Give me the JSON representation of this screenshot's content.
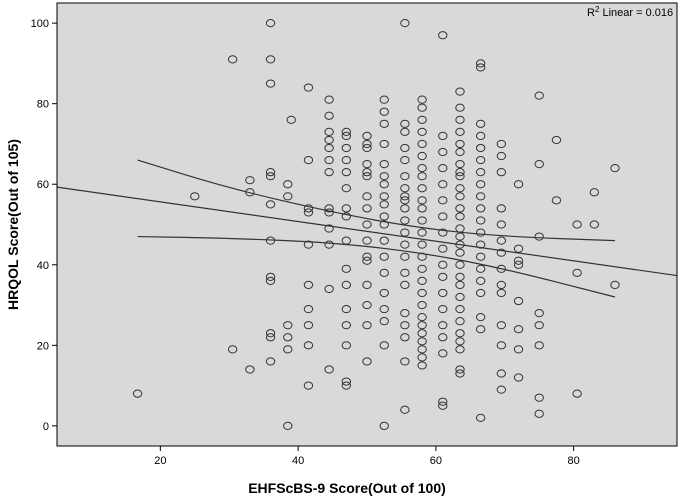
{
  "chart_data": {
    "type": "scatter",
    "xlabel": "EHFScBS-9 Score(Out of 100)",
    "ylabel": "HRQOL Score(Out of 105)",
    "xlim": [
      5,
      95
    ],
    "ylim": [
      -5,
      105
    ],
    "xticks": [
      20,
      40,
      60,
      80
    ],
    "yticks": [
      0,
      20,
      40,
      60,
      80,
      100
    ],
    "grid": false,
    "background": "#d9d9d9",
    "annotation": {
      "prefix": "R",
      "sup": "2",
      "suffix": " Linear = 0.016"
    },
    "fit_line": {
      "slope": -0.244,
      "intercept": 60.5
    },
    "ci_upper": [
      [
        16.7,
        66
      ],
      [
        30,
        59
      ],
      [
        45,
        53
      ],
      [
        58,
        49
      ],
      [
        70,
        47
      ],
      [
        86,
        46
      ]
    ],
    "ci_lower": [
      [
        16.7,
        47
      ],
      [
        30,
        46.6
      ],
      [
        45,
        45.5
      ],
      [
        58,
        43
      ],
      [
        70,
        39
      ],
      [
        86,
        32
      ]
    ],
    "points": [
      [
        16.7,
        8
      ],
      [
        25,
        57
      ],
      [
        30.5,
        91
      ],
      [
        30.5,
        19
      ],
      [
        33,
        61
      ],
      [
        33,
        58
      ],
      [
        33,
        14
      ],
      [
        36,
        100
      ],
      [
        36,
        91
      ],
      [
        36,
        85
      ],
      [
        36,
        63
      ],
      [
        36,
        62
      ],
      [
        36,
        55
      ],
      [
        36,
        46
      ],
      [
        36,
        37
      ],
      [
        36,
        36
      ],
      [
        36,
        23
      ],
      [
        36,
        22
      ],
      [
        36,
        16
      ],
      [
        38.5,
        60
      ],
      [
        38.5,
        57
      ],
      [
        38.5,
        25
      ],
      [
        38.5,
        22
      ],
      [
        38.5,
        19
      ],
      [
        38.5,
        0
      ],
      [
        39,
        76
      ],
      [
        41.5,
        84
      ],
      [
        41.5,
        66
      ],
      [
        41.5,
        54
      ],
      [
        41.5,
        53
      ],
      [
        41.5,
        45
      ],
      [
        41.5,
        29
      ],
      [
        41.5,
        25
      ],
      [
        41.5,
        20
      ],
      [
        41.5,
        10
      ],
      [
        41.5,
        35
      ],
      [
        44.5,
        81
      ],
      [
        44.5,
        77
      ],
      [
        44.5,
        73
      ],
      [
        44.5,
        71
      ],
      [
        44.5,
        69
      ],
      [
        44.5,
        66
      ],
      [
        44.5,
        63
      ],
      [
        44.5,
        54
      ],
      [
        44.5,
        53
      ],
      [
        44.5,
        49
      ],
      [
        44.5,
        45
      ],
      [
        44.5,
        34
      ],
      [
        44.5,
        14
      ],
      [
        47,
        73
      ],
      [
        47,
        72
      ],
      [
        47,
        69
      ],
      [
        47,
        66
      ],
      [
        47,
        63
      ],
      [
        47,
        59
      ],
      [
        47,
        54
      ],
      [
        47,
        52
      ],
      [
        47,
        46
      ],
      [
        47,
        39
      ],
      [
        47,
        35
      ],
      [
        47,
        29
      ],
      [
        47,
        25
      ],
      [
        47,
        20
      ],
      [
        47,
        11
      ],
      [
        47,
        10
      ],
      [
        50,
        72
      ],
      [
        50,
        70
      ],
      [
        50,
        69
      ],
      [
        50,
        65
      ],
      [
        50,
        63
      ],
      [
        50,
        62
      ],
      [
        50,
        57
      ],
      [
        50,
        54
      ],
      [
        50,
        50
      ],
      [
        50,
        46
      ],
      [
        50,
        42
      ],
      [
        50,
        41
      ],
      [
        50,
        35
      ],
      [
        50,
        30
      ],
      [
        50,
        25
      ],
      [
        50,
        16
      ],
      [
        52.5,
        81
      ],
      [
        52.5,
        78
      ],
      [
        52.5,
        75
      ],
      [
        52.5,
        70
      ],
      [
        52.5,
        65
      ],
      [
        52.5,
        62
      ],
      [
        52.5,
        60
      ],
      [
        52.5,
        57
      ],
      [
        52.5,
        55
      ],
      [
        52.5,
        52
      ],
      [
        52.5,
        50
      ],
      [
        52.5,
        46
      ],
      [
        52.5,
        42
      ],
      [
        52.5,
        38
      ],
      [
        52.5,
        33
      ],
      [
        52.5,
        29
      ],
      [
        52.5,
        26
      ],
      [
        52.5,
        20
      ],
      [
        52.5,
        0
      ],
      [
        55.5,
        100
      ],
      [
        55.5,
        75
      ],
      [
        55.5,
        73
      ],
      [
        55.5,
        69
      ],
      [
        55.5,
        66
      ],
      [
        55.5,
        62
      ],
      [
        55.5,
        59
      ],
      [
        55.5,
        57
      ],
      [
        55.5,
        56
      ],
      [
        55.5,
        54
      ],
      [
        55.5,
        51
      ],
      [
        55.5,
        48
      ],
      [
        55.5,
        45
      ],
      [
        55.5,
        42
      ],
      [
        55.5,
        38
      ],
      [
        55.5,
        35
      ],
      [
        55.5,
        28
      ],
      [
        55.5,
        25
      ],
      [
        55.5,
        22
      ],
      [
        55.5,
        16
      ],
      [
        55.5,
        4
      ],
      [
        58,
        81
      ],
      [
        58,
        79
      ],
      [
        58,
        76
      ],
      [
        58,
        73
      ],
      [
        58,
        70
      ],
      [
        58,
        67
      ],
      [
        58,
        64
      ],
      [
        58,
        62
      ],
      [
        58,
        59
      ],
      [
        58,
        56
      ],
      [
        58,
        54
      ],
      [
        58,
        51
      ],
      [
        58,
        48
      ],
      [
        58,
        45
      ],
      [
        58,
        42
      ],
      [
        58,
        39
      ],
      [
        58,
        36
      ],
      [
        58,
        33
      ],
      [
        58,
        30
      ],
      [
        58,
        27
      ],
      [
        58,
        25
      ],
      [
        58,
        23
      ],
      [
        58,
        21
      ],
      [
        58,
        19
      ],
      [
        58,
        17
      ],
      [
        58,
        15
      ],
      [
        61,
        97
      ],
      [
        61,
        72
      ],
      [
        61,
        68
      ],
      [
        61,
        64
      ],
      [
        61,
        60
      ],
      [
        61,
        56
      ],
      [
        61,
        52
      ],
      [
        61,
        48
      ],
      [
        61,
        44
      ],
      [
        61,
        40
      ],
      [
        61,
        37
      ],
      [
        61,
        33
      ],
      [
        61,
        29
      ],
      [
        61,
        25
      ],
      [
        61,
        22
      ],
      [
        61,
        18
      ],
      [
        61,
        6
      ],
      [
        61,
        5
      ],
      [
        63.5,
        83
      ],
      [
        63.5,
        79
      ],
      [
        63.5,
        76
      ],
      [
        63.5,
        73
      ],
      [
        63.5,
        70
      ],
      [
        63.5,
        68
      ],
      [
        63.5,
        65
      ],
      [
        63.5,
        63
      ],
      [
        63.5,
        62
      ],
      [
        63.5,
        59
      ],
      [
        63.5,
        57
      ],
      [
        63.5,
        54
      ],
      [
        63.5,
        52
      ],
      [
        63.5,
        49
      ],
      [
        63.5,
        47
      ],
      [
        63.5,
        45
      ],
      [
        63.5,
        43
      ],
      [
        63.5,
        40
      ],
      [
        63.5,
        37
      ],
      [
        63.5,
        35
      ],
      [
        63.5,
        32
      ],
      [
        63.5,
        29
      ],
      [
        63.5,
        26
      ],
      [
        63.5,
        23
      ],
      [
        63.5,
        21
      ],
      [
        63.5,
        19
      ],
      [
        63.5,
        14
      ],
      [
        63.5,
        13
      ],
      [
        66.5,
        90
      ],
      [
        66.5,
        89
      ],
      [
        66.5,
        75
      ],
      [
        66.5,
        72
      ],
      [
        66.5,
        69
      ],
      [
        66.5,
        66
      ],
      [
        66.5,
        63
      ],
      [
        66.5,
        60
      ],
      [
        66.5,
        57
      ],
      [
        66.5,
        54
      ],
      [
        66.5,
        51
      ],
      [
        66.5,
        48
      ],
      [
        66.5,
        45
      ],
      [
        66.5,
        42
      ],
      [
        66.5,
        39
      ],
      [
        66.5,
        36
      ],
      [
        66.5,
        33
      ],
      [
        66.5,
        27
      ],
      [
        66.5,
        24
      ],
      [
        66.5,
        2
      ],
      [
        69.5,
        70
      ],
      [
        69.5,
        67
      ],
      [
        69.5,
        63
      ],
      [
        69.5,
        54
      ],
      [
        69.5,
        50
      ],
      [
        69.5,
        46
      ],
      [
        69.5,
        43
      ],
      [
        69.5,
        39
      ],
      [
        69.5,
        35
      ],
      [
        69.5,
        33
      ],
      [
        69.5,
        25
      ],
      [
        69.5,
        20
      ],
      [
        69.5,
        13
      ],
      [
        69.5,
        9
      ],
      [
        72,
        60
      ],
      [
        72,
        44
      ],
      [
        72,
        41
      ],
      [
        72,
        40
      ],
      [
        72,
        31
      ],
      [
        72,
        24
      ],
      [
        72,
        19
      ],
      [
        72,
        12
      ],
      [
        75,
        82
      ],
      [
        75,
        65
      ],
      [
        75,
        47
      ],
      [
        75,
        28
      ],
      [
        75,
        25
      ],
      [
        75,
        20
      ],
      [
        75,
        7
      ],
      [
        75,
        3
      ],
      [
        77.5,
        71
      ],
      [
        77.5,
        56
      ],
      [
        80.5,
        50
      ],
      [
        80.5,
        38
      ],
      [
        80.5,
        8
      ],
      [
        83,
        58
      ],
      [
        83,
        50
      ],
      [
        86,
        64
      ],
      [
        86,
        35
      ]
    ]
  }
}
